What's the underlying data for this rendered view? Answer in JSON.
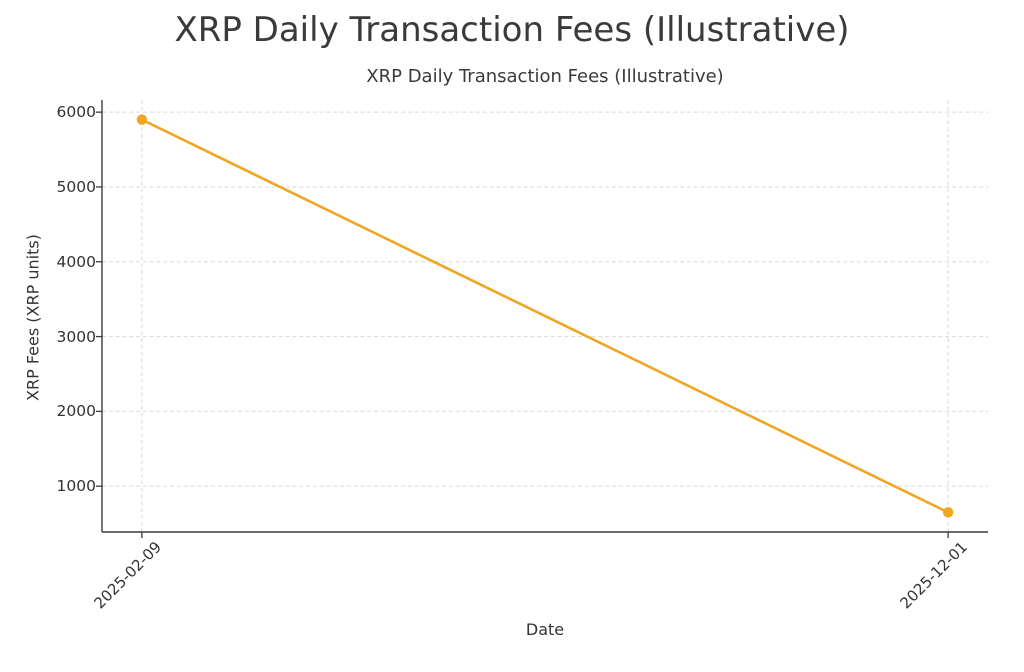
{
  "figure": {
    "suptitle": "XRP Daily Transaction Fees (Illustrative)",
    "background": "#ffffff"
  },
  "chart_data": {
    "type": "line",
    "title": "XRP Daily Transaction Fees (Illustrative)",
    "xlabel": "Date",
    "ylabel": "XRP Fees (XRP units)",
    "x": [
      "2025-02-09",
      "2025-12-01"
    ],
    "series": [
      {
        "name": "XRP Daily Transaction Fees",
        "values": [
          5900,
          650
        ]
      }
    ],
    "yticks": [
      1000,
      2000,
      3000,
      4000,
      5000,
      6000
    ],
    "ylim": [
      387.5,
      6162.5
    ],
    "x_margin_frac": 0.045,
    "grid": true,
    "grid_style": "dashed",
    "legend": "none",
    "marker": "circle"
  },
  "style": {
    "line_color": "#efa623",
    "marker_color": "#efa623",
    "spine_color": "#3b3b3b",
    "tick_color": "#3b3b3b",
    "grid_color": "#d9d9d9",
    "text_color": "#333333",
    "title_color": "#3a3a3a"
  }
}
